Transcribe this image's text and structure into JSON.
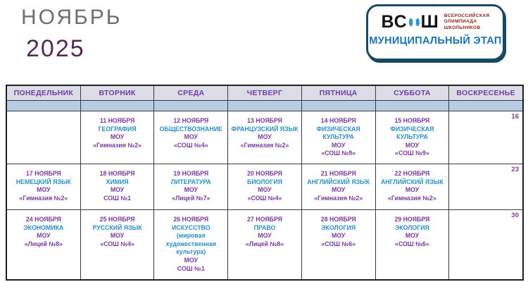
{
  "page": {
    "title_month": "НОЯБРЬ",
    "title_year": "2025"
  },
  "logo": {
    "acronym_left": "ВС",
    "acronym_right": "Ш",
    "tagline_line1": "ВСЕРОССИЙСКАЯ",
    "tagline_line2": "ОЛИМПИАДА",
    "tagline_line3": "ШКОЛЬНИКОВ",
    "stage": "МУНИЦИПАЛЬНЫЙ ЭТАП"
  },
  "colors": {
    "accent_purple": "#7b3a9b",
    "accent_teal": "#2c8fbf",
    "header_bg": "#dbdce6",
    "spacer_bg": "#b8cce4",
    "logo_border": "#1c4a63",
    "logo_blue": "#2e96cc",
    "tagline_red": "#8a1d12",
    "title_gray": "#6d6e71",
    "title_plum": "#542a52"
  },
  "calendar": {
    "day_headers": [
      "ПОНЕДЕЛЬНИК",
      "ВТОРНИК",
      "СРЕДА",
      "ЧЕТВЕРГ",
      "ПЯТНИЦА",
      "СУББОТА",
      "ВОСКРЕСЕНЬЕ"
    ],
    "weeks": [
      {
        "cells": [
          {},
          {
            "date": "11 НОЯБРЯ",
            "subject": "ГЕОГРАФИЯ",
            "org": "МОУ",
            "school": "«Гимназия №2»"
          },
          {
            "date": "12 НОЯБРЯ",
            "subject": "ОБЩЕСТВОЗНАНИЕ",
            "org": "МОУ",
            "school": "«СОШ №4»"
          },
          {
            "date": "13 НОЯБРЯ",
            "subject": "ФРАНЦУЗСКИЙ ЯЗЫК",
            "org": "МОУ",
            "school": "«Гимназия №2»"
          },
          {
            "date": "14 НОЯБРЯ",
            "subject": "ФИЗИЧЕСКАЯ КУЛЬТУРА",
            "org": "МОУ",
            "school": "«СОШ №9»"
          },
          {
            "date": "15 НОЯБРЯ",
            "subject": "ФИЗИЧЕСКАЯ КУЛЬТУРА",
            "org": "МОУ",
            "school": "«СОШ №9»"
          },
          {
            "day_number": "16"
          }
        ]
      },
      {
        "cells": [
          {
            "date": "17 НОЯБРЯ",
            "subject": "НЕМЕЦКИЙ ЯЗЫК",
            "org": "МОУ",
            "school": "«Гимназия №2»"
          },
          {
            "date": "18 НОЯБРЯ",
            "subject": "ХИМИЯ",
            "org": "МОУ",
            "school": "СОШ №1"
          },
          {
            "date": "19 НОЯБРЯ",
            "subject": "ЛИТЕРАТУРА",
            "org": "МОУ",
            "school": "«Лицей №7»"
          },
          {
            "date": "20 НОЯБРЯ",
            "subject": "БИОЛОГИЯ",
            "org": "МОУ",
            "school": "«СОШ №4»"
          },
          {
            "date": "21 НОЯБРЯ",
            "subject": "АНГЛИЙСКИЙ ЯЗЫК",
            "org": "МОУ",
            "school": "«Гимназия №2»"
          },
          {
            "date": "22 НОЯБРЯ",
            "subject": "АНГЛИЙСКИЙ ЯЗЫК",
            "org": "МОУ",
            "school": "«Гимназия №2»"
          },
          {
            "day_number": "23"
          }
        ]
      },
      {
        "cells": [
          {
            "date": "24 НОЯБРЯ",
            "subject": "ЭКОНОМИКА",
            "org": "МОУ",
            "school": "«Лицей №8»"
          },
          {
            "date": "25 НОЯБРЯ",
            "subject": "РУССКИЙ ЯЗЫК",
            "org": "МОУ",
            "school": "«СОШ №4»"
          },
          {
            "date": "26 НОЯБРЯ",
            "subject": "ИСКУССТВО",
            "note": "(мировая художественная культура)",
            "org": "МОУ",
            "school": "СОШ №1"
          },
          {
            "date": "27 НОЯБРЯ",
            "subject": "ПРАВО",
            "org": "МОУ",
            "school": "«Лицей №8»"
          },
          {
            "date": "28 НОЯБРЯ",
            "subject": "ЭКОЛОГИЯ",
            "org": "МОУ",
            "school": "«СОШ №6»"
          },
          {
            "date": "29 НОЯБРЯ",
            "subject": "ЭКОЛОГИЯ",
            "org": "МОУ",
            "school": "«СОШ №6»"
          },
          {
            "day_number": "30"
          }
        ]
      }
    ]
  }
}
